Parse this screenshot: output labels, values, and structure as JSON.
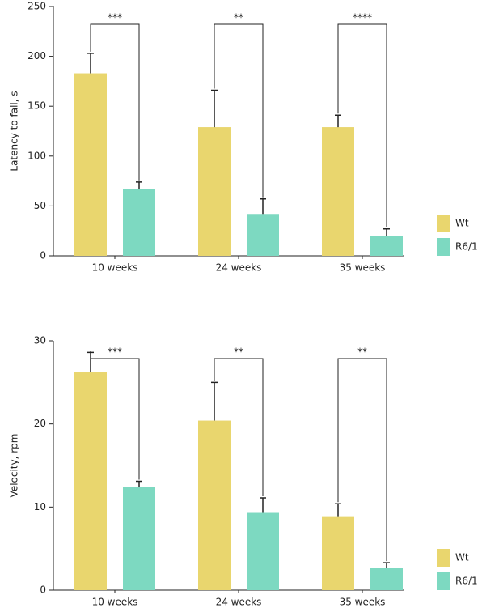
{
  "chart_data": [
    {
      "type": "bar",
      "ylabel": "Latency to fall, s",
      "categories": [
        "10 weeks",
        "24 weeks",
        "35 weeks"
      ],
      "series": [
        {
          "name": "Wt",
          "color": "#e9d66e",
          "values": [
            183,
            129,
            129
          ],
          "errors": [
            20,
            37,
            12
          ]
        },
        {
          "name": "R6/1",
          "color": "#7dd9c1",
          "values": [
            67,
            42,
            20
          ],
          "errors": [
            7,
            15,
            7
          ]
        }
      ],
      "annotations": [
        "***",
        "**",
        "****"
      ],
      "ylim": [
        0,
        250
      ],
      "yticks": [
        0,
        50,
        100,
        150,
        200,
        250
      ],
      "legend": "bottom-right"
    },
    {
      "type": "bar",
      "ylabel": "Velocity, rpm",
      "categories": [
        "10 weeks",
        "24 weeks",
        "35 weeks"
      ],
      "series": [
        {
          "name": "Wt",
          "color": "#e9d66e",
          "values": [
            26.2,
            20.4,
            8.9
          ],
          "errors": [
            2.4,
            4.6,
            1.5
          ]
        },
        {
          "name": "R6/1",
          "color": "#7dd9c1",
          "values": [
            12.4,
            9.3,
            2.7
          ],
          "errors": [
            0.7,
            1.8,
            0.6
          ]
        }
      ],
      "annotations": [
        "***",
        "**",
        "**"
      ],
      "ylim": [
        0,
        30
      ],
      "yticks": [
        0,
        10,
        20,
        30
      ],
      "legend": "bottom-right"
    }
  ]
}
